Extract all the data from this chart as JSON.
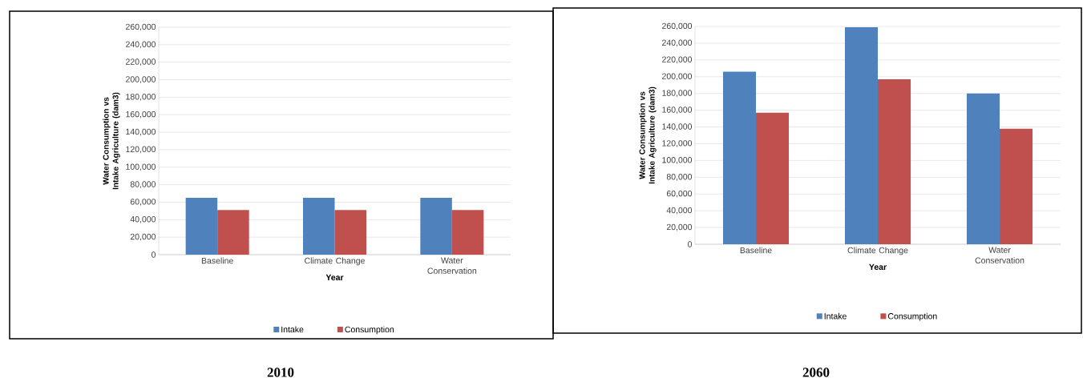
{
  "chart_data": [
    {
      "type": "bar",
      "xlabel": "Year",
      "ylabel": "Water Consumption vs Intake Agriculture (dam3)",
      "categories": [
        "Baseline",
        "Climate Change",
        "Water Conservation"
      ],
      "series": [
        {
          "name": "Intake",
          "color": "#4f81bd",
          "values": [
            65000,
            65000,
            65000
          ]
        },
        {
          "name": "Consumption",
          "color": "#c0504d",
          "values": [
            51000,
            51000,
            51000
          ]
        }
      ],
      "ylim": [
        0,
        260000
      ],
      "yticks": [
        {
          "value": 0,
          "label": "0"
        },
        {
          "value": 20000,
          "label": "20,000"
        },
        {
          "value": 40000,
          "label": "40,000"
        },
        {
          "value": 60000,
          "label": "60,000"
        },
        {
          "value": 80000,
          "label": "80,000"
        },
        {
          "value": 100000,
          "label": "100,000"
        },
        {
          "value": 120000,
          "label": "120,000"
        },
        {
          "value": 140000,
          "label": "140,000"
        },
        {
          "value": 160000,
          "label": "160,000"
        },
        {
          "value": 180000,
          "label": "180,000"
        },
        {
          "value": 200000,
          "label": "200,000"
        },
        {
          "value": 220000,
          "label": "220,000"
        },
        {
          "value": 240000,
          "label": "240,000"
        },
        {
          "value": 260000,
          "label": "260,000"
        }
      ],
      "grid": "y",
      "legend": "bottom",
      "annotations": [
        "2010"
      ]
    },
    {
      "type": "bar",
      "xlabel": "Year",
      "ylabel": "Water Consumption vs Intake Agriculture (dam3)",
      "categories": [
        "Baseline",
        "Climate Change",
        "Water Conservation"
      ],
      "series": [
        {
          "name": "Intake",
          "color": "#4f81bd",
          "values": [
            206000,
            259000,
            180000
          ]
        },
        {
          "name": "Consumption",
          "color": "#c0504d",
          "values": [
            157000,
            197000,
            138000
          ]
        }
      ],
      "ylim": [
        0,
        260000
      ],
      "yticks": [
        {
          "value": 0,
          "label": "0"
        },
        {
          "value": 20000,
          "label": "20,000"
        },
        {
          "value": 40000,
          "label": "40,000"
        },
        {
          "value": 60000,
          "label": "60,000"
        },
        {
          "value": 80000,
          "label": "80,000"
        },
        {
          "value": 100000,
          "label": "100,000"
        },
        {
          "value": 120000,
          "label": "120,000"
        },
        {
          "value": 140000,
          "label": "140,000"
        },
        {
          "value": 160000,
          "label": "160,000"
        },
        {
          "value": 180000,
          "label": "180,000"
        },
        {
          "value": 200000,
          "label": "200,000"
        },
        {
          "value": 220000,
          "label": "220,000"
        },
        {
          "value": 240000,
          "label": "240,000"
        },
        {
          "value": 260000,
          "label": "260,000"
        }
      ],
      "grid": "y",
      "legend": "bottom",
      "annotations": [
        "2060"
      ]
    }
  ]
}
